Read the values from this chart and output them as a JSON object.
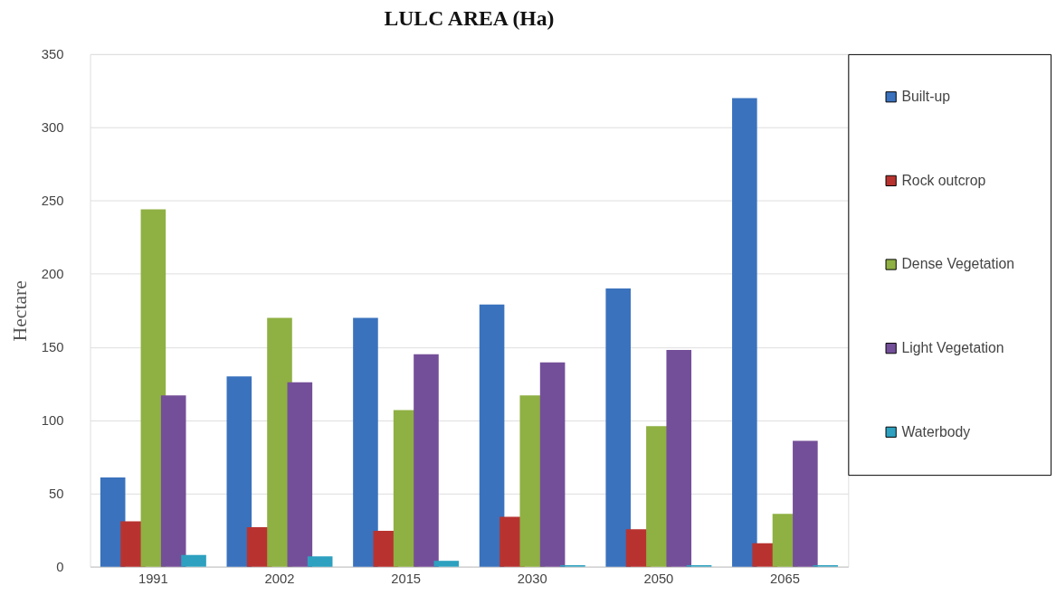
{
  "chart_data": {
    "type": "bar",
    "title": "LULC AREA (Ha)",
    "ylabel": "Hectare",
    "categories": [
      "1991",
      "2002",
      "2015",
      "2030",
      "2050",
      "2065"
    ],
    "series": [
      {
        "name": "Built-up",
        "color": "#3a72bd",
        "values": [
          61,
          130,
          170,
          179,
          190,
          320
        ]
      },
      {
        "name": "Rock outcrop",
        "color": "#b83330",
        "values": [
          31,
          27,
          24.5,
          34,
          25.5,
          16
        ]
      },
      {
        "name": "Dense Vegetation",
        "color": "#8fb043",
        "values": [
          244,
          170,
          107,
          117,
          96,
          36
        ]
      },
      {
        "name": "Light Vegetation",
        "color": "#744f99",
        "values": [
          117,
          126,
          145,
          139.5,
          148,
          86
        ]
      },
      {
        "name": "Waterbody",
        "color": "#2da1bf",
        "values": [
          8,
          7,
          4,
          1,
          1,
          1
        ]
      }
    ],
    "ylim": [
      0,
      350
    ],
    "yticks": [
      0,
      50,
      100,
      150,
      200,
      250,
      300,
      350
    ],
    "grid": "y",
    "legend": "right"
  }
}
